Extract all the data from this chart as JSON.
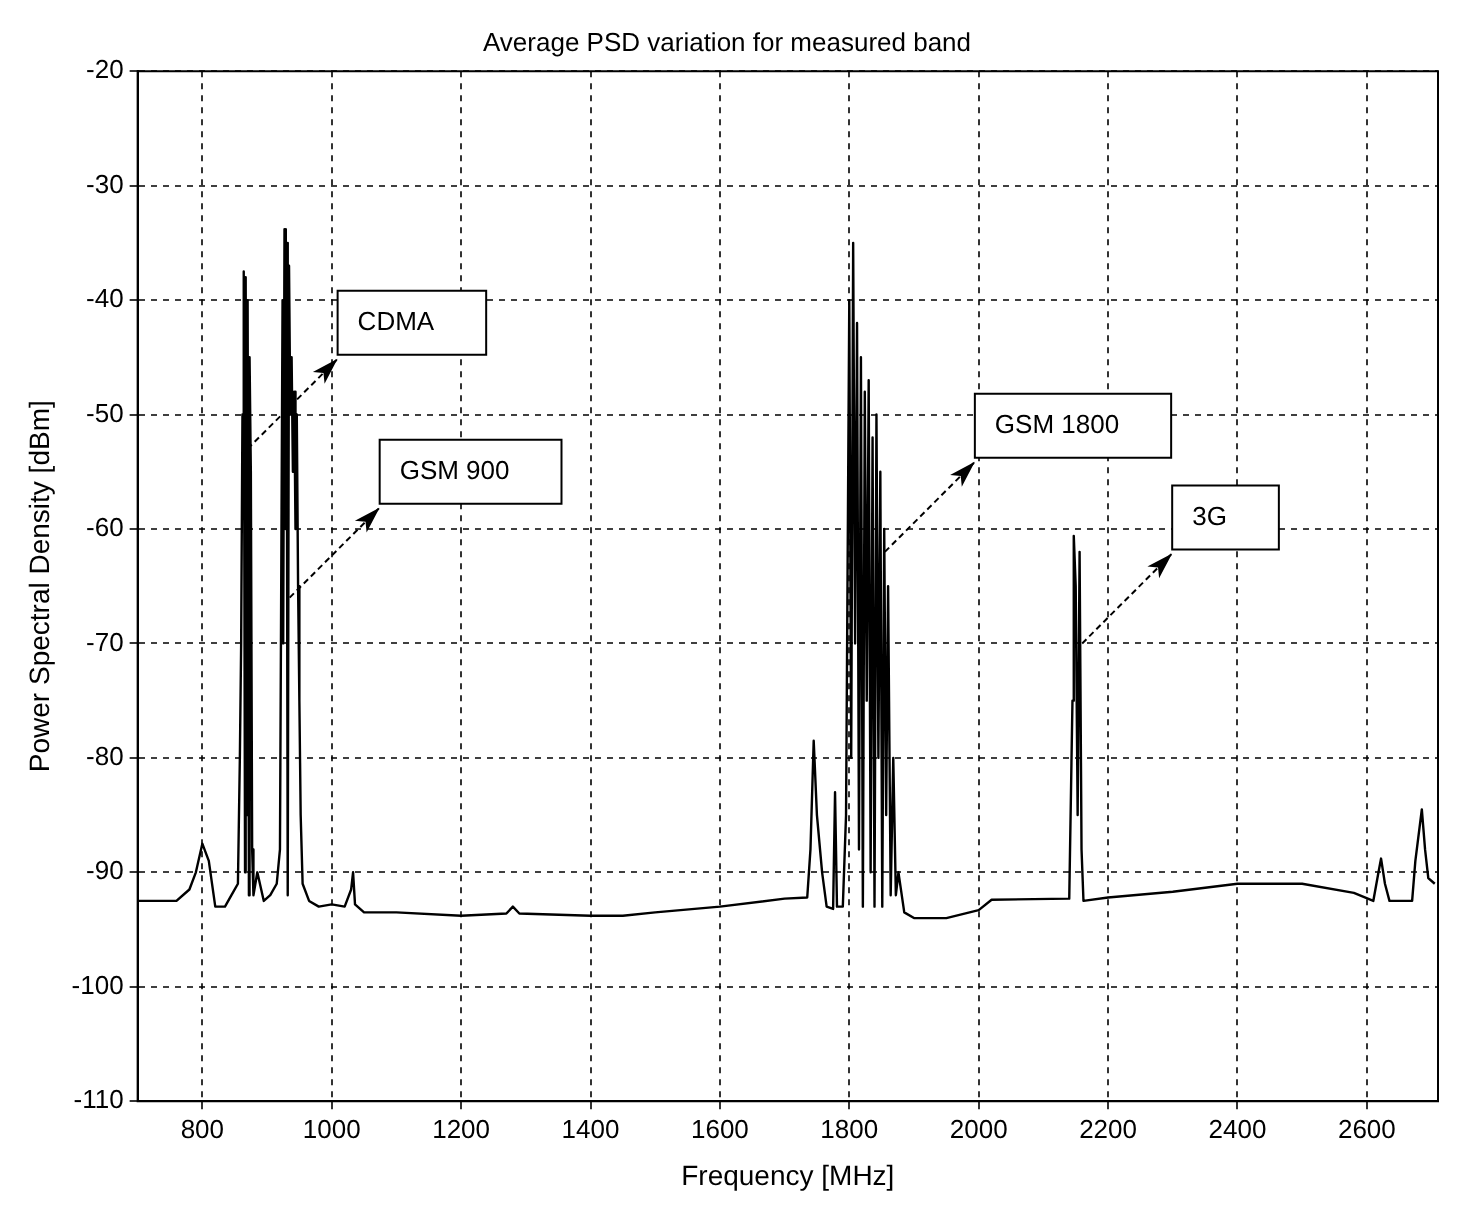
{
  "chart_data": {
    "type": "line",
    "title": "Average PSD variation for measured band",
    "xlabel": "Frequency [MHz]",
    "ylabel": "Power Spectral Density [dBm]",
    "x": [
      700,
      760,
      780,
      790,
      800,
      810,
      820,
      835,
      845,
      855,
      858,
      860,
      862,
      864,
      866,
      867,
      869,
      870,
      872,
      873,
      875,
      877,
      879,
      885,
      895,
      905,
      915,
      920,
      924,
      925,
      927,
      929,
      930,
      932,
      934,
      936,
      938,
      940,
      942,
      944,
      946,
      948,
      950,
      952,
      955,
      965,
      980,
      1000,
      1020,
      1030,
      1033,
      1036,
      1050,
      1100,
      1200,
      1270,
      1280,
      1290,
      1400,
      1450,
      1500,
      1600,
      1700,
      1735,
      1740,
      1745,
      1750,
      1758,
      1765,
      1775,
      1778,
      1781,
      1790,
      1795,
      1800,
      1803,
      1806,
      1809,
      1812,
      1815,
      1818,
      1821,
      1824,
      1827,
      1830,
      1833,
      1836,
      1839,
      1842,
      1845,
      1848,
      1851,
      1854,
      1857,
      1860,
      1864,
      1868,
      1872,
      1876,
      1885,
      1900,
      1950,
      2000,
      2020,
      2140,
      2145,
      2147,
      2150,
      2153,
      2156,
      2159,
      2162,
      2200,
      2300,
      2400,
      2500,
      2580,
      2610,
      2618,
      2622,
      2628,
      2635,
      2670,
      2675,
      2685,
      2690,
      2695,
      2705
    ],
    "series": [
      {
        "color": "#000000",
        "values": [
          -92.5,
          -92.5,
          -91.5,
          -90,
          -87.5,
          -89,
          -93,
          -93,
          -92,
          -91,
          -80,
          -70,
          -50,
          -37.5,
          -90,
          -38,
          -85,
          -40,
          -92,
          -45,
          -55,
          -88,
          -92,
          -90,
          -92.5,
          -92,
          -91,
          -88,
          -40,
          -70,
          -33.8,
          -60,
          -35,
          -92,
          -37,
          -50,
          -45,
          -55,
          -48,
          -60,
          -50,
          -65,
          -75,
          -85,
          -91,
          -92.5,
          -93,
          -92.8,
          -93,
          -91.5,
          -90,
          -92.8,
          -93.5,
          -93.5,
          -93.8,
          -93.6,
          -93,
          -93.6,
          -93.8,
          -93.8,
          -93.5,
          -93,
          -92.3,
          -92.2,
          -88,
          -78.5,
          -85,
          -90,
          -93,
          -93.2,
          -83,
          -93,
          -93,
          -85,
          -40,
          -80,
          -35,
          -70,
          -42,
          -88,
          -45,
          -93,
          -48,
          -75,
          -47,
          -90,
          -52,
          -93,
          -50,
          -80,
          -55,
          -93,
          -60,
          -85,
          -65,
          -92,
          -80,
          -92,
          -90,
          -93.5,
          -94,
          -94,
          -93.3,
          -92.4,
          -92.3,
          -75,
          -60.6,
          -65,
          -85,
          -62,
          -88,
          -92.5,
          -92.2,
          -91.7,
          -91,
          -91,
          -91.8,
          -92.5,
          -90,
          -88.8,
          -91,
          -92.5,
          -92.5,
          -89,
          -84.5,
          -88,
          -90.5,
          -91
        ]
      }
    ],
    "xlim": [
      700,
      2710
    ],
    "xticks": [
      800,
      1000,
      1200,
      1400,
      1600,
      1800,
      2000,
      2200,
      2400,
      2600
    ],
    "ylim": [
      -110,
      -20
    ],
    "yticks": [
      -110,
      -100,
      -90,
      -80,
      -70,
      -60,
      -50,
      -40,
      -30,
      -20
    ],
    "grid": true,
    "legend": false,
    "marker": "none",
    "line_style": "solid",
    "annotations": [
      {
        "text": "CDMA",
        "x": 870,
        "y": -53
      },
      {
        "text": "GSM 900",
        "x": 935,
        "y": -66
      },
      {
        "text": "GSM 1800",
        "x": 1855,
        "y": -62
      },
      {
        "text": "3G",
        "x": 2160,
        "y": -70
      }
    ]
  }
}
